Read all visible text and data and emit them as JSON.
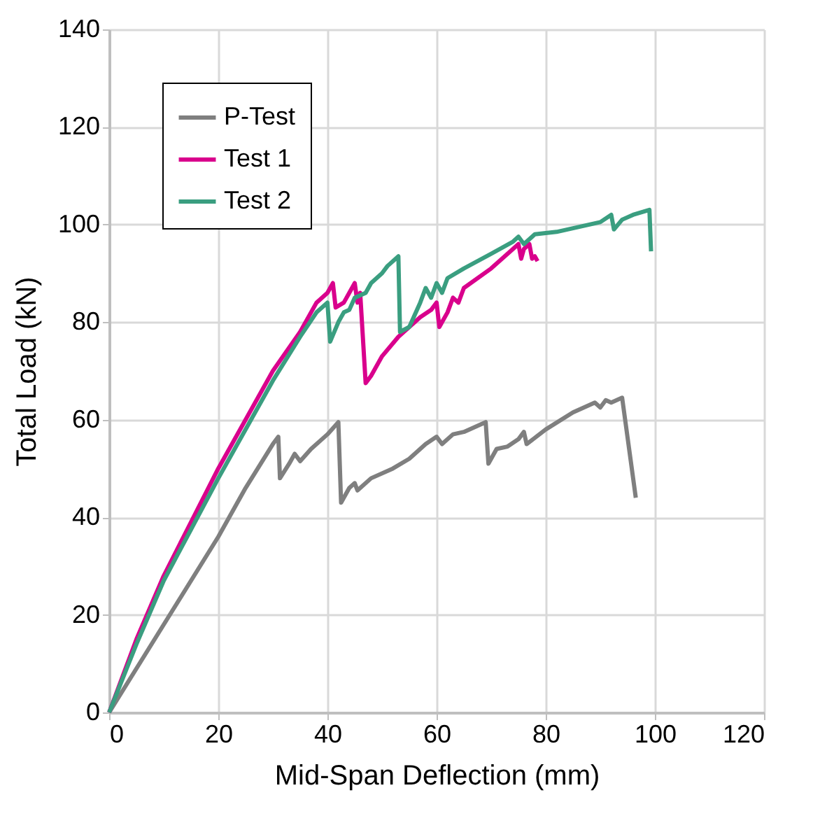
{
  "chart_data": {
    "type": "line",
    "xlabel": "Mid-Span Deflection (mm)",
    "ylabel": "Total Load (kN)",
    "xlim": [
      0,
      120
    ],
    "xticks": [
      0,
      20,
      40,
      60,
      80,
      100,
      120
    ],
    "ylim": [
      0,
      140
    ],
    "yticks": [
      0,
      20,
      40,
      60,
      80,
      100,
      120,
      140
    ],
    "grid": true,
    "legend": "top left",
    "marker": "none",
    "line_style": "solid",
    "series": [
      {
        "name": "P-Test",
        "color": "#7f7f7f",
        "x": [
          0,
          10,
          20,
          25,
          30,
          31,
          31.3,
          33,
          34,
          35,
          37,
          40,
          42,
          42.5,
          44,
          45,
          45.5,
          48,
          52,
          55,
          58,
          60,
          61,
          63,
          65,
          67,
          69,
          69.5,
          71,
          73,
          75,
          76,
          76.5,
          80,
          85,
          89,
          90,
          91,
          92,
          94,
          96.5
        ],
        "values": [
          0,
          18,
          36,
          46,
          55,
          56.5,
          48,
          51,
          53,
          51.5,
          54,
          57,
          59.5,
          43,
          46,
          47,
          45.5,
          48,
          50,
          52,
          55,
          56.5,
          55,
          57,
          57.5,
          58.5,
          59.5,
          51,
          54,
          54.5,
          56,
          57.5,
          55,
          58,
          61.5,
          63.5,
          62.5,
          64,
          63.5,
          64.5,
          44
        ]
      },
      {
        "name": "Test 1",
        "color": "#d9008c",
        "x": [
          0,
          5,
          10,
          20,
          30,
          35,
          38,
          40,
          41,
          41.5,
          43,
          44,
          45,
          45.5,
          46,
          47,
          48,
          50,
          53,
          55,
          57,
          59,
          60,
          60.5,
          62,
          63,
          64,
          65,
          70,
          74,
          75,
          75.5,
          76,
          77,
          77.5,
          78,
          78.5
        ],
        "values": [
          0,
          15,
          28,
          50,
          70,
          78,
          84,
          86,
          88,
          83,
          84,
          86,
          88,
          84,
          86,
          67.5,
          69,
          73,
          77,
          79,
          81,
          82.5,
          84,
          79,
          82,
          85,
          84,
          87,
          91,
          95,
          96,
          93,
          95,
          96,
          93,
          93.5,
          92.5
        ]
      },
      {
        "name": "Test 2",
        "color": "#3a9e80",
        "x": [
          0,
          5,
          10,
          20,
          30,
          35,
          38,
          40,
          40.5,
          42,
          43,
          44,
          45,
          47,
          48,
          50,
          51,
          53,
          53.3,
          55,
          57,
          58,
          59,
          60,
          61,
          62,
          65,
          70,
          74,
          75,
          76,
          78,
          82,
          84,
          86,
          90,
          92,
          92.5,
          94,
          96,
          99,
          99.3
        ],
        "values": [
          0,
          14,
          27,
          48,
          68,
          77,
          82,
          84,
          76,
          80,
          82,
          82.5,
          85,
          86,
          88,
          90,
          91.5,
          93.5,
          78,
          79,
          84,
          87,
          85,
          88,
          86,
          89,
          91,
          94,
          96.5,
          97.5,
          96,
          98,
          98.5,
          99,
          99.5,
          100.5,
          102,
          99,
          101,
          102,
          103,
          94.5
        ]
      }
    ]
  }
}
